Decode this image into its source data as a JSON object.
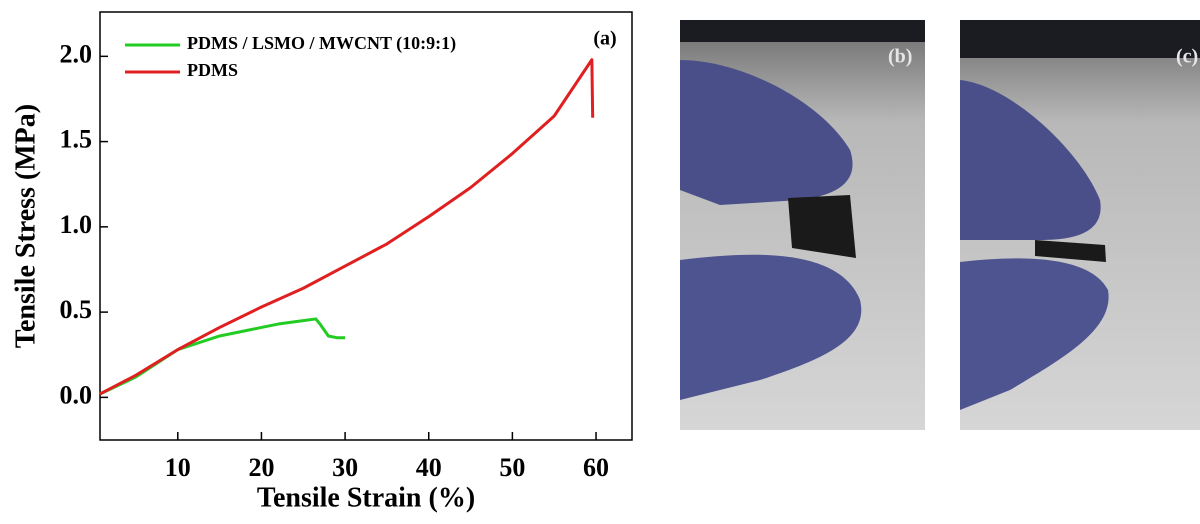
{
  "chart_data": {
    "type": "line",
    "annotation": "(a)",
    "x_label": "Tensile Strain (%)",
    "y_label": "Tensile Stress (MPa)",
    "xlim": [
      0.7,
      64.3
    ],
    "ylim": [
      -0.25,
      2.26
    ],
    "xticks": [
      10,
      20,
      30,
      40,
      50,
      60
    ],
    "yticks": [
      {
        "value": 0,
        "label": "0.0"
      },
      0.5,
      {
        "value": 1,
        "label": "1.0"
      },
      1.5,
      {
        "value": 2,
        "label": "2.0"
      }
    ],
    "legend": "upper left",
    "series": [
      {
        "name": "PDMS / LSMO / MWCNT (10:9:1)",
        "color": "#22cc22",
        "x": [
          0.7,
          5,
          10,
          15,
          18,
          20,
          22,
          25,
          26.5,
          27,
          28,
          29,
          30
        ],
        "values": [
          0.02,
          0.12,
          0.28,
          0.36,
          0.39,
          0.41,
          0.43,
          0.45,
          0.46,
          0.43,
          0.36,
          0.35,
          0.35
        ]
      },
      {
        "name": "PDMS",
        "color": "#e02020",
        "x": [
          0.7,
          5,
          10,
          15,
          20,
          25,
          30,
          35,
          40,
          45,
          50,
          55,
          59.5,
          59.6
        ],
        "values": [
          0.02,
          0.13,
          0.28,
          0.41,
          0.53,
          0.64,
          0.77,
          0.9,
          1.06,
          1.23,
          1.43,
          1.65,
          1.98,
          1.64
        ]
      }
    ]
  },
  "photos": {
    "b": "(b)",
    "c": "(c)"
  }
}
